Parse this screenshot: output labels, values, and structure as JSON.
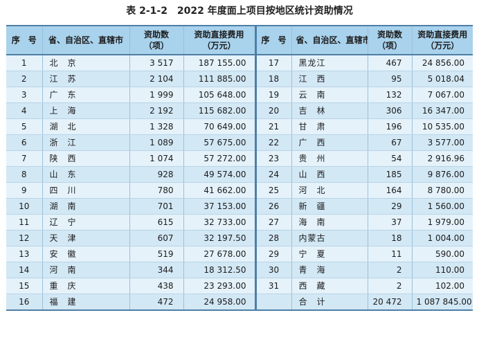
{
  "title": "表 2-1-2　2022 年度面上项目按地区统计资助情况",
  "headers": {
    "seq": "序　号",
    "province": "省、自治区、直辖市",
    "count_line1": "资助数",
    "count_line2": "（项）",
    "fee_line1": "资助直接费用",
    "fee_line2": "（万元）"
  },
  "rows": [
    {
      "left": {
        "seq": "1",
        "province": "北　京",
        "count": "3 517",
        "fee": "187 155.00"
      },
      "right": {
        "seq": "17",
        "province": "黑龙江",
        "count": "467",
        "fee": "24 856.00"
      }
    },
    {
      "left": {
        "seq": "2",
        "province": "江　苏",
        "count": "2 104",
        "fee": "111 885.00"
      },
      "right": {
        "seq": "18",
        "province": "江　西",
        "count": "95",
        "fee": "5 018.04"
      }
    },
    {
      "left": {
        "seq": "3",
        "province": "广　东",
        "count": "1 999",
        "fee": "105 648.00"
      },
      "right": {
        "seq": "19",
        "province": "云　南",
        "count": "132",
        "fee": "7 067.00"
      }
    },
    {
      "left": {
        "seq": "4",
        "province": "上　海",
        "count": "2 192",
        "fee": "115 682.00"
      },
      "right": {
        "seq": "20",
        "province": "吉　林",
        "count": "306",
        "fee": "16 347.00"
      }
    },
    {
      "left": {
        "seq": "5",
        "province": "湖　北",
        "count": "1 328",
        "fee": "70 649.00"
      },
      "right": {
        "seq": "21",
        "province": "甘　肃",
        "count": "196",
        "fee": "10 535.00"
      }
    },
    {
      "left": {
        "seq": "6",
        "province": "浙　江",
        "count": "1 089",
        "fee": "57 675.00"
      },
      "right": {
        "seq": "22",
        "province": "广　西",
        "count": "67",
        "fee": "3 577.00"
      }
    },
    {
      "left": {
        "seq": "7",
        "province": "陕　西",
        "count": "1 074",
        "fee": "57 272.00"
      },
      "right": {
        "seq": "23",
        "province": "贵　州",
        "count": "54",
        "fee": "2 916.96"
      }
    },
    {
      "left": {
        "seq": "8",
        "province": "山　东",
        "count": "928",
        "fee": "49 574.00"
      },
      "right": {
        "seq": "24",
        "province": "山　西",
        "count": "185",
        "fee": "9 876.00"
      }
    },
    {
      "left": {
        "seq": "9",
        "province": "四　川",
        "count": "780",
        "fee": "41 662.00"
      },
      "right": {
        "seq": "25",
        "province": "河　北",
        "count": "164",
        "fee": "8 780.00"
      }
    },
    {
      "left": {
        "seq": "10",
        "province": "湖　南",
        "count": "701",
        "fee": "37 153.00"
      },
      "right": {
        "seq": "26",
        "province": "新　疆",
        "count": "29",
        "fee": "1 560.00"
      }
    },
    {
      "left": {
        "seq": "11",
        "province": "辽　宁",
        "count": "615",
        "fee": "32 733.00"
      },
      "right": {
        "seq": "27",
        "province": "海　南",
        "count": "37",
        "fee": "1 979.00"
      }
    },
    {
      "left": {
        "seq": "12",
        "province": "天　津",
        "count": "607",
        "fee": "32 197.50"
      },
      "right": {
        "seq": "28",
        "province": "内蒙古",
        "count": "18",
        "fee": "1 004.00"
      }
    },
    {
      "left": {
        "seq": "13",
        "province": "安　徽",
        "count": "519",
        "fee": "27 678.00"
      },
      "right": {
        "seq": "29",
        "province": "宁　夏",
        "count": "11",
        "fee": "590.00"
      }
    },
    {
      "left": {
        "seq": "14",
        "province": "河　南",
        "count": "344",
        "fee": "18 312.50"
      },
      "right": {
        "seq": "30",
        "province": "青　海",
        "count": "2",
        "fee": "110.00"
      }
    },
    {
      "left": {
        "seq": "15",
        "province": "重　庆",
        "count": "438",
        "fee": "23 293.00"
      },
      "right": {
        "seq": "31",
        "province": "西　藏",
        "count": "2",
        "fee": "102.00"
      }
    },
    {
      "left": {
        "seq": "16",
        "province": "福　建",
        "count": "472",
        "fee": "24 958.00"
      },
      "right": {
        "seq": "",
        "province": "合　计",
        "count": "20 472",
        "fee": "1 087 845.00"
      }
    }
  ]
}
